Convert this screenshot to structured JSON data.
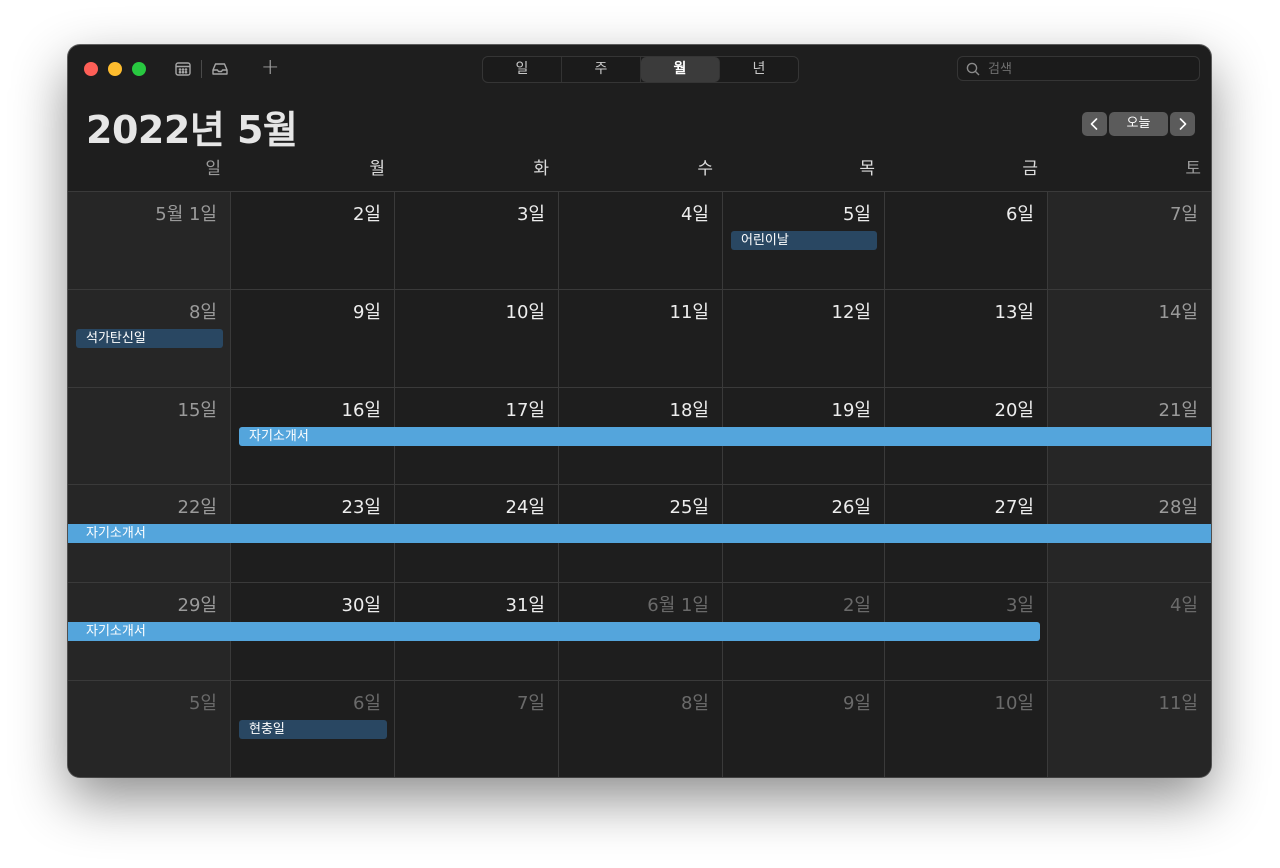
{
  "toolbar": {
    "views": [
      "일",
      "주",
      "월",
      "년"
    ],
    "active_view": "월",
    "search_placeholder": "검색",
    "plus": "+"
  },
  "header": {
    "month_title": "2022년 5월",
    "today_label": "오늘",
    "prev": "‹",
    "next": "›"
  },
  "weekdays": [
    "일",
    "월",
    "화",
    "수",
    "목",
    "금",
    "토"
  ],
  "weeks": [
    [
      {
        "label": "5월 1일"
      },
      {
        "label": "2일"
      },
      {
        "label": "3일"
      },
      {
        "label": "4일"
      },
      {
        "label": "5일"
      },
      {
        "label": "6일"
      },
      {
        "label": "7일"
      }
    ],
    [
      {
        "label": "8일"
      },
      {
        "label": "9일"
      },
      {
        "label": "10일"
      },
      {
        "label": "11일"
      },
      {
        "label": "12일"
      },
      {
        "label": "13일"
      },
      {
        "label": "14일"
      }
    ],
    [
      {
        "label": "15일"
      },
      {
        "label": "16일"
      },
      {
        "label": "17일"
      },
      {
        "label": "18일"
      },
      {
        "label": "19일"
      },
      {
        "label": "20일"
      },
      {
        "label": "21일"
      }
    ],
    [
      {
        "label": "22일"
      },
      {
        "label": "23일"
      },
      {
        "label": "24일"
      },
      {
        "label": "25일"
      },
      {
        "label": "26일"
      },
      {
        "label": "27일"
      },
      {
        "label": "28일"
      }
    ],
    [
      {
        "label": "29일"
      },
      {
        "label": "30일"
      },
      {
        "label": "31일"
      },
      {
        "label": "6월 1일",
        "other": true
      },
      {
        "label": "2일",
        "other": true
      },
      {
        "label": "3일",
        "other": true
      },
      {
        "label": "4일",
        "other": true
      }
    ],
    [
      {
        "label": "5일",
        "other": true
      },
      {
        "label": "6일",
        "other": true
      },
      {
        "label": "7일",
        "other": true
      },
      {
        "label": "8일",
        "other": true
      },
      {
        "label": "9일",
        "other": true
      },
      {
        "label": "10일",
        "other": true
      },
      {
        "label": "11일",
        "other": true
      }
    ]
  ],
  "events": [
    {
      "title": "어린이날",
      "week": 0,
      "start_day": 4,
      "end_day": 4,
      "kind": "holiday"
    },
    {
      "title": "석가탄신일",
      "week": 1,
      "start_day": 0,
      "end_day": 0,
      "kind": "holiday"
    },
    {
      "title": "자기소개서",
      "week": 2,
      "start_day": 1,
      "end_day": 6,
      "kind": "span",
      "continues_right": true
    },
    {
      "title": "자기소개서",
      "week": 3,
      "start_day": 0,
      "end_day": 6,
      "kind": "span",
      "continues_left": true,
      "continues_right": true
    },
    {
      "title": "자기소개서",
      "week": 4,
      "start_day": 0,
      "end_day": 5,
      "kind": "span",
      "continues_left": true
    },
    {
      "title": "현충일",
      "week": 5,
      "start_day": 1,
      "end_day": 1,
      "kind": "holiday"
    }
  ],
  "colors": {
    "holiday_event": "#294762",
    "span_event": "#54a5dc",
    "window_bg": "#1e1e1e",
    "weekend_bg": "#262626"
  }
}
